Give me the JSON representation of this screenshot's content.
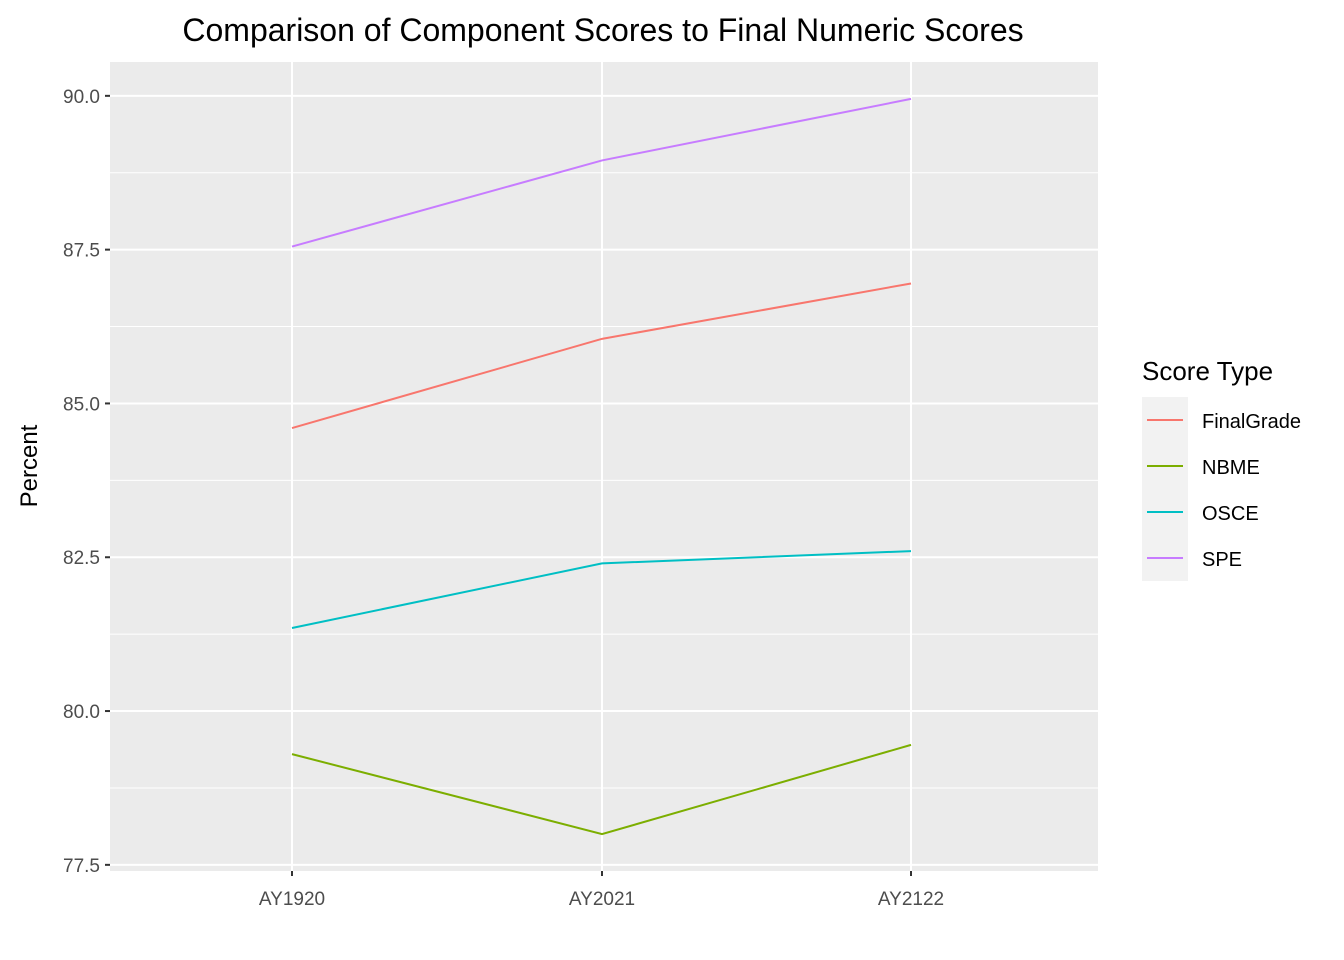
{
  "chart_data": {
    "type": "line",
    "title": "Comparison of Component Scores to Final Numeric Scores",
    "xlabel": "",
    "ylabel": "Percent",
    "categories": [
      "AY1920",
      "AY2021",
      "AY2122"
    ],
    "ylim": [
      77.4,
      90.55
    ],
    "y_ticks": [
      77.5,
      80.0,
      82.5,
      85.0,
      87.5,
      90.0
    ],
    "y_tick_labels": [
      "77.5",
      "80.0",
      "82.5",
      "85.0",
      "87.5",
      "90.0"
    ],
    "grid": true,
    "legend": {
      "title": "Score Type",
      "position": "right"
    },
    "series": [
      {
        "name": "FinalGrade",
        "color": "#F8766D",
        "values": [
          84.6,
          86.05,
          86.95
        ]
      },
      {
        "name": "NBME",
        "color": "#7CAE00",
        "values": [
          79.3,
          78.0,
          79.45
        ]
      },
      {
        "name": "OSCE",
        "color": "#00BFC4",
        "values": [
          81.35,
          82.4,
          82.6
        ]
      },
      {
        "name": "SPE",
        "color": "#C77CFF",
        "values": [
          87.55,
          88.95,
          89.95
        ]
      }
    ]
  }
}
